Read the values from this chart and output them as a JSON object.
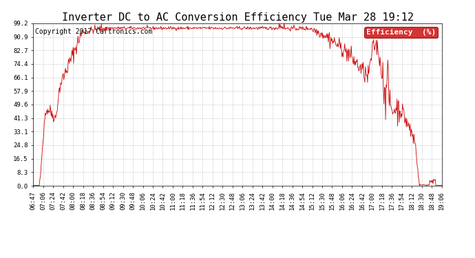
{
  "title": "Inverter DC to AC Conversion Efficiency Tue Mar 28 19:12",
  "copyright": "Copyright 2017 Cartronics.com",
  "legend_label": "Efficiency  (%)",
  "legend_bg": "#cc0000",
  "legend_text_color": "#ffffff",
  "line_color": "#cc0000",
  "background_color": "#ffffff",
  "grid_color": "#bbbbbb",
  "yticks": [
    0.0,
    8.3,
    16.5,
    24.8,
    33.1,
    41.3,
    49.6,
    57.9,
    66.1,
    74.4,
    82.7,
    90.9,
    99.2
  ],
  "xtick_labels": [
    "06:47",
    "07:06",
    "07:24",
    "07:42",
    "08:00",
    "08:18",
    "08:36",
    "08:54",
    "09:12",
    "09:30",
    "09:48",
    "10:06",
    "10:24",
    "10:42",
    "11:00",
    "11:18",
    "11:36",
    "11:54",
    "12:12",
    "12:30",
    "12:48",
    "13:06",
    "13:24",
    "13:42",
    "14:00",
    "14:18",
    "14:36",
    "14:54",
    "15:12",
    "15:30",
    "15:48",
    "16:06",
    "16:24",
    "16:42",
    "17:00",
    "17:18",
    "17:36",
    "17:54",
    "18:12",
    "18:30",
    "18:48",
    "19:06"
  ],
  "ylim": [
    0.0,
    99.2
  ],
  "title_fontsize": 11,
  "copyright_fontsize": 7,
  "tick_fontsize": 6.5,
  "legend_fontsize": 8
}
